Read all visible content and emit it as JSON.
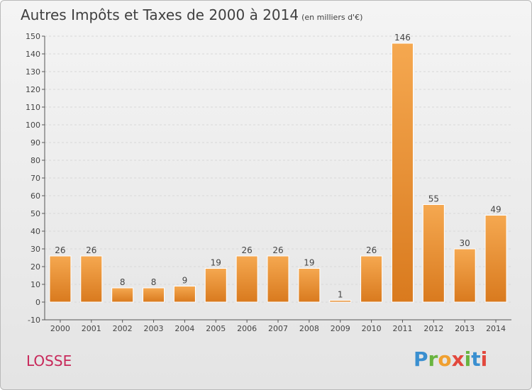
{
  "chart_title": "Autres Impôts et Taxes de 2000 à 2014",
  "chart_subtitle": "(en milliers d'€)",
  "place_name": "LOSSE",
  "logo_text": "Proxiti",
  "colors": {
    "bar_light": "#f5a850",
    "bar_dark": "#d97a1e",
    "axis": "#555555",
    "grid": "#d8d8d8",
    "text": "#444444",
    "place": "#c8285a"
  },
  "chart_data": {
    "type": "bar",
    "title": "Autres Impôts et Taxes de 2000 à 2014",
    "subtitle": "(en milliers d'€)",
    "xlabel": "",
    "ylabel": "",
    "categories": [
      "2000",
      "2001",
      "2002",
      "2003",
      "2004",
      "2005",
      "2006",
      "2007",
      "2008",
      "2009",
      "2010",
      "2011",
      "2012",
      "2013",
      "2014"
    ],
    "values": [
      26,
      26,
      8,
      8,
      9,
      19,
      26,
      26,
      19,
      1,
      26,
      146,
      55,
      30,
      49
    ],
    "ylim": [
      -10,
      150
    ],
    "yticks": [
      -10,
      0,
      10,
      20,
      30,
      40,
      50,
      60,
      70,
      80,
      90,
      100,
      110,
      120,
      130,
      140,
      150
    ],
    "grid": true,
    "legend": "none"
  }
}
